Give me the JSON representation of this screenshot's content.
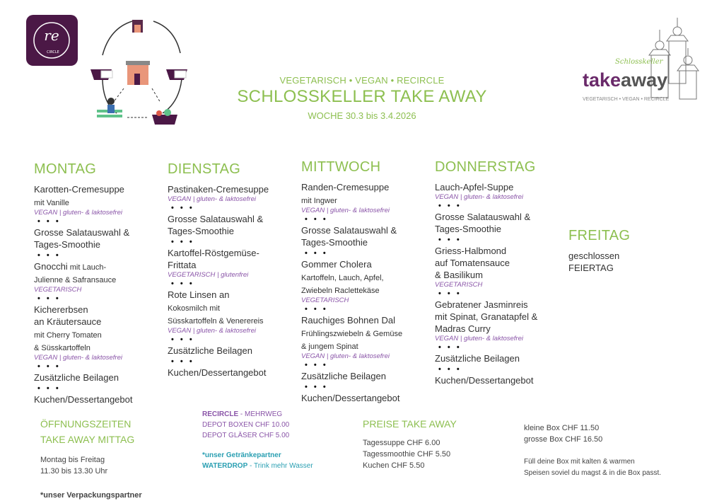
{
  "header": {
    "subtitle": "VEGETARISCH • VEGAN • RECIRCLE",
    "title": "SCHLOSSKELLER TAKE AWAY",
    "week": "WOCHE 30.3 bis 3.4.2026"
  },
  "logos": {
    "recircle": "re CIRCLE",
    "takeaway_script": "Schlosskeller",
    "takeaway_main": "takeaway",
    "takeaway_tagline": "VEGETARISCH • VEGAN • RECIRCLE"
  },
  "colors": {
    "green": "#8dbf50",
    "purple": "#8a55a8",
    "dark_purple": "#4b1846",
    "teal": "#2a9fb2"
  },
  "separator": "• • •",
  "days": [
    {
      "name": "MONTAG",
      "items": [
        {
          "title": "Karotten-Cremesuppe",
          "detail": "\nmit Vanille",
          "tag": "VEGAN | gluten- & laktosefrei"
        },
        {
          "title": "Grosse Salatauswahl &\nTages-Smoothie",
          "detail": "",
          "tag": ""
        },
        {
          "title": "Gnocchi",
          "detail": " mit Lauch-\nJulienne & Safransauce",
          "tag": "VEGETARISCH"
        },
        {
          "title": "Kichererbsen\nan Kräutersauce",
          "detail": "\nmit Cherry Tomaten\n& Süsskartoffeln",
          "tag": "VEGAN | gluten- & laktosefrei"
        },
        {
          "title": "Zusätzliche Beilagen",
          "detail": "",
          "tag": ""
        },
        {
          "title": "Kuchen/Dessertangebot",
          "detail": "",
          "tag": ""
        }
      ]
    },
    {
      "name": "DIENSTAG",
      "items": [
        {
          "title": "Pastinaken-Cremesuppe",
          "detail": "",
          "tag": "VEGAN | gluten- & laktosefrei"
        },
        {
          "title": "Grosse Salatauswahl &\nTages-Smoothie",
          "detail": "",
          "tag": ""
        },
        {
          "title": "Kartoffel-Röstgemüse-\nFrittata",
          "detail": "",
          "tag": "VEGETARISCH | glutenfrei"
        },
        {
          "title": "Rote Linsen an",
          "detail": "\nKokosmilch mit\nSüsskartoffeln & Venerereis",
          "tag": "VEGAN | gluten- & laktosefrei"
        },
        {
          "title": "Zusätzliche Beilagen",
          "detail": "",
          "tag": ""
        },
        {
          "title": "Kuchen/Dessertangebot",
          "detail": "",
          "tag": ""
        }
      ]
    },
    {
      "name": "MITTWOCH",
      "items": [
        {
          "title": "Randen-Cremesuppe",
          "detail": "\nmit Ingwer",
          "tag": "VEGAN | gluten- & laktosefrei"
        },
        {
          "title": "Grosse Salatauswahl &\nTages-Smoothie",
          "detail": "",
          "tag": ""
        },
        {
          "title": "Gommer Cholera",
          "detail": "\nKartoffeln, Lauch, Apfel,\nZwiebeln Raclettekäse",
          "tag": "VEGETARISCH"
        },
        {
          "title": "Rauchiges Bohnen Dal",
          "detail": "\nFrühlingszwiebeln & Gemüse\n& jungem Spinat",
          "tag": "VEGAN | gluten- & laktosefrei"
        },
        {
          "title": "Zusätzliche Beilagen",
          "detail": "",
          "tag": ""
        },
        {
          "title": "Kuchen/Dessertangebot",
          "detail": "",
          "tag": ""
        }
      ]
    },
    {
      "name": "DONNERSTAG",
      "items": [
        {
          "title": "Lauch-Apfel-Suppe",
          "detail": "",
          "tag": "VEGAN | gluten- & laktosefrei"
        },
        {
          "title": "Grosse Salatauswahl &\nTages-Smoothie",
          "detail": "",
          "tag": ""
        },
        {
          "title": "Griess-Halbmond\nauf Tomatensauce\n& Basilikum",
          "detail": "",
          "tag": "VEGETARISCH"
        },
        {
          "title": "Gebratener Jasminreis\nmit Spinat, Granatapfel &\nMadras Curry",
          "detail": "",
          "tag": "VEGAN | gluten- & laktosefrei"
        },
        {
          "title": "Zusätzliche Beilagen",
          "detail": "",
          "tag": ""
        },
        {
          "title": "Kuchen/Dessertangebot",
          "detail": "",
          "tag": ""
        }
      ]
    }
  ],
  "friday": {
    "name": "FREITAG",
    "line1": "geschlossen",
    "line2": "FEIERTAG"
  },
  "hours": {
    "heading1": "ÖFFNUNGSZEITEN",
    "heading2": "TAKE AWAY MITTAG",
    "line1": "Montag bis Freitag",
    "line2": "11.30 bis 13.30 Uhr",
    "partner": "*unser Verpackungspartner"
  },
  "recircle": {
    "brand": "RECIRCLE",
    "label": " - MEHRWEG",
    "line1": "DEPOT BOXEN CHF 10.00",
    "line2": "DEPOT GLÄSER CHF 5.00",
    "drink_partner": "*unser Getränkepartner",
    "waterdrop": "WATERDROP",
    "waterdrop_text": " - Trink mehr Wasser"
  },
  "prices": {
    "heading": "PREISE TAKE AWAY",
    "items": [
      "Tagessuppe CHF 6.00",
      "Tagessmoothie CHF 5.50",
      "Kuchen CHF 5.50"
    ]
  },
  "boxes": {
    "small": "kleine Box CHF 11.50",
    "large": "grosse Box CHF 16.50",
    "note1": "Füll deine Box mit kalten & warmen",
    "note2": "Speisen soviel du magst & in die Box passt."
  }
}
